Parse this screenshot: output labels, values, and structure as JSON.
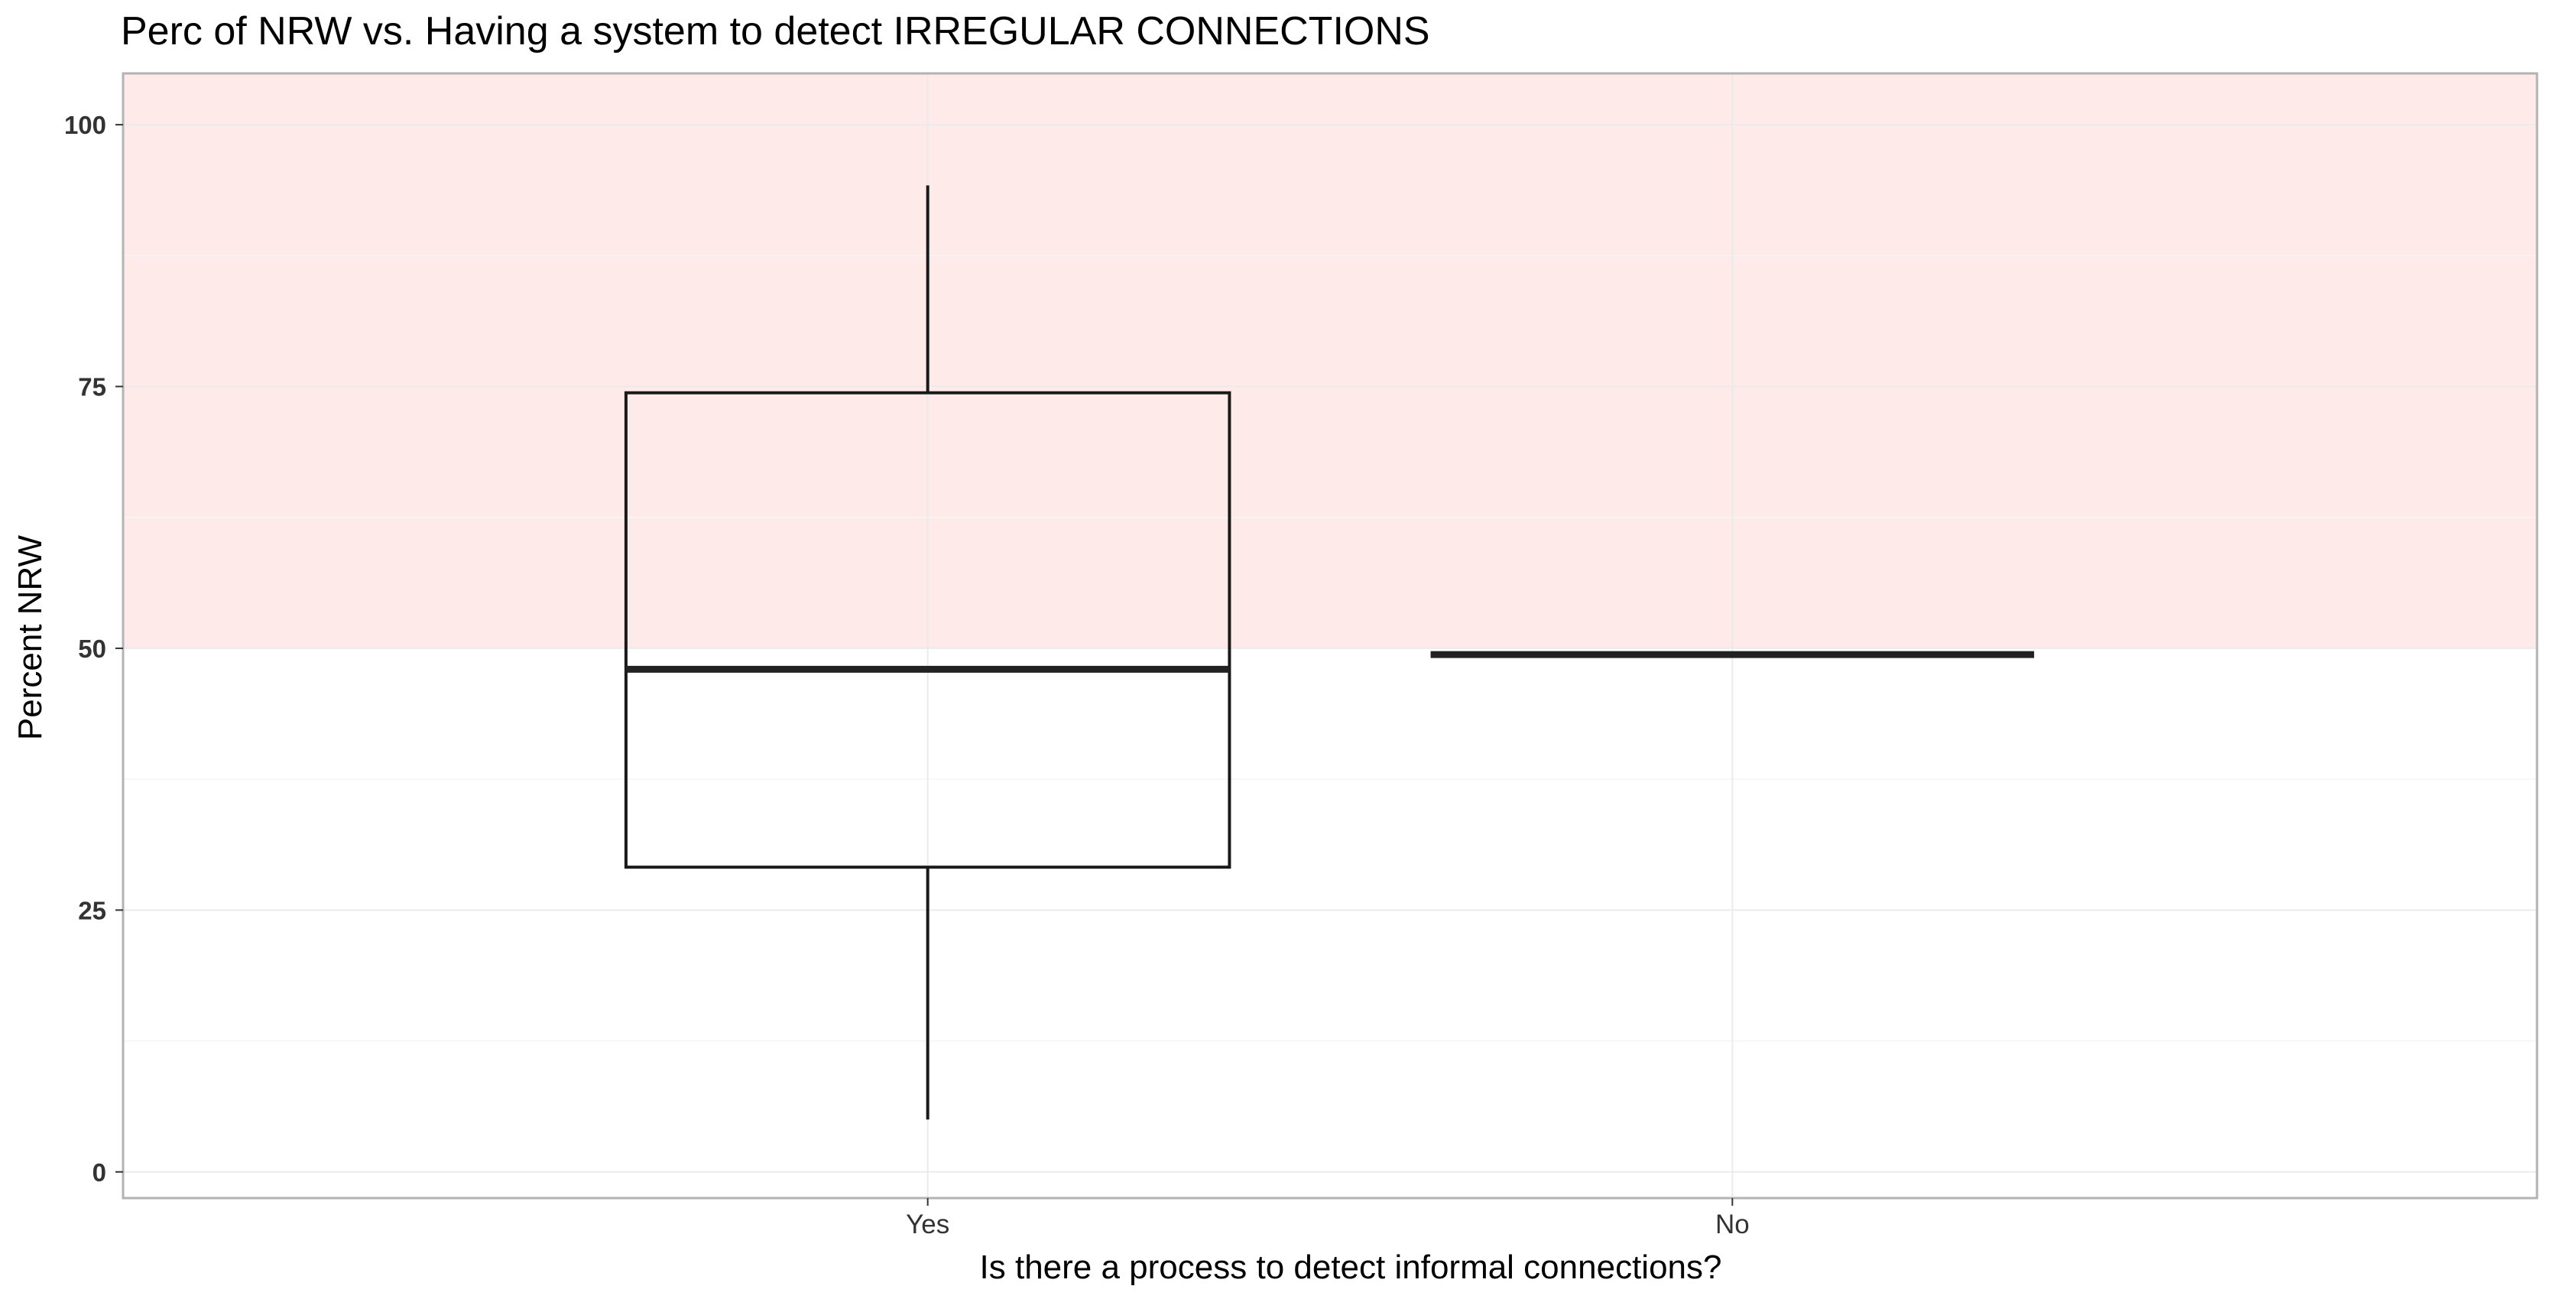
{
  "chart_data": {
    "type": "boxplot",
    "title": "Perc of NRW vs. Having a system to detect IRREGULAR CONNECTIONS",
    "xlabel": "Is there a process to detect informal connections?",
    "ylabel": "Percent NRW",
    "ylim": [
      -2.5,
      104.9
    ],
    "yticks": [
      0,
      25,
      50,
      75,
      100
    ],
    "categories": [
      "Yes",
      "No"
    ],
    "boxes": [
      {
        "category": "Yes",
        "min": 5.0,
        "q1": 29.1,
        "median": 48.0,
        "q3": 74.4,
        "max": 94.2
      },
      {
        "category": "No",
        "min": 49.4,
        "q1": 49.4,
        "median": 49.4,
        "q3": 49.4,
        "max": 49.4
      }
    ],
    "shaded_band": {
      "from": 50,
      "to": 104.9,
      "color": "#ffeaea"
    },
    "grid": true,
    "colors": {
      "panel_border": "#b3b3b3",
      "grid_major": "#ebebeb",
      "grid_minor": "#f5f5f5",
      "box_line": "#1a1a1a",
      "median_line": "#222222"
    }
  }
}
